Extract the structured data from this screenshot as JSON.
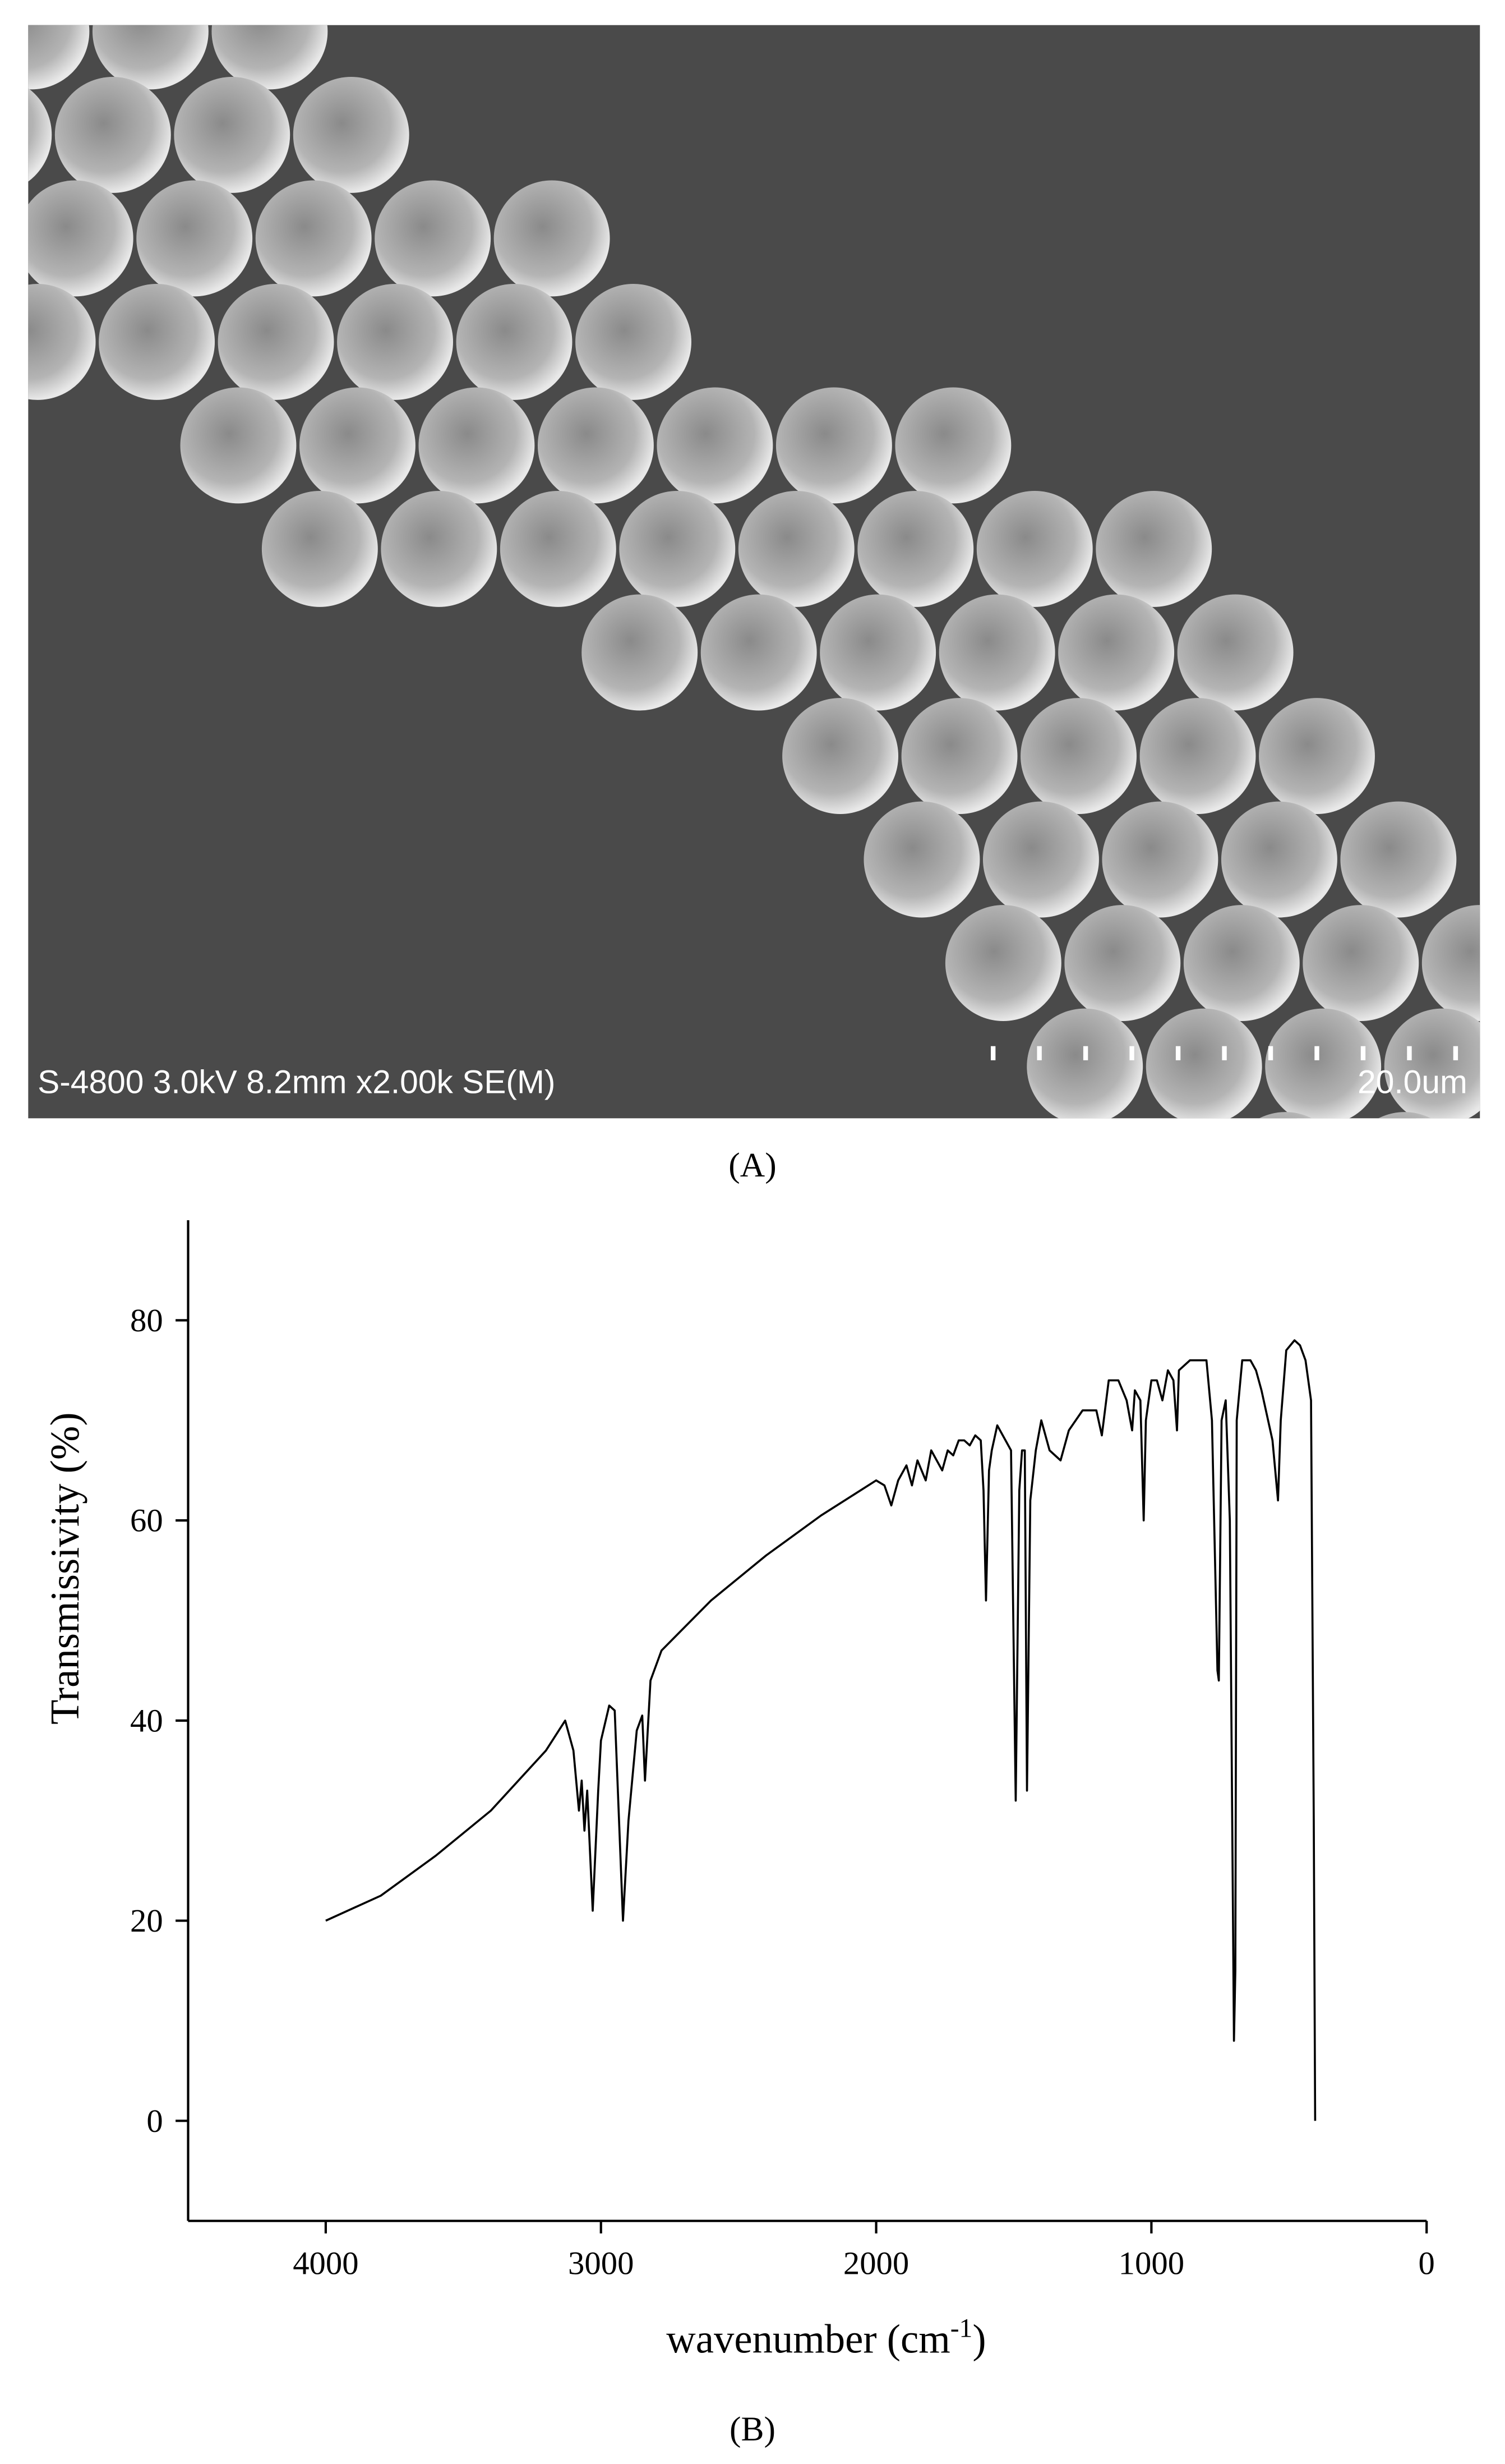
{
  "panel_a": {
    "sem_info": "S-4800 3.0kV 8.2mm x2.00k SE(M)",
    "scale_label": "20.0um",
    "caption": "(A)"
  },
  "chart_data": {
    "type": "line",
    "y_label": "Transmissivity (%)",
    "x_label": [
      "wavenumber (cm",
      "-1",
      ")"
    ],
    "caption": "(B)",
    "color": "#000000",
    "xlim": [
      4500,
      0
    ],
    "xticks": [
      4000,
      3000,
      2000,
      1000,
      0
    ],
    "ylim": [
      -10,
      90
    ],
    "yticks": [
      0,
      20,
      40,
      60,
      80
    ],
    "x": [
      4000,
      3800,
      3600,
      3400,
      3200,
      3130,
      3100,
      3080,
      3070,
      3060,
      3050,
      3030,
      3010,
      3000,
      2970,
      2950,
      2920,
      2900,
      2870,
      2850,
      2840,
      2820,
      2780,
      2600,
      2400,
      2200,
      2000,
      1970,
      1945,
      1920,
      1890,
      1870,
      1850,
      1820,
      1800,
      1760,
      1740,
      1720,
      1700,
      1680,
      1660,
      1640,
      1620,
      1610,
      1601,
      1590,
      1580,
      1560,
      1540,
      1510,
      1493,
      1480,
      1470,
      1460,
      1452,
      1440,
      1420,
      1400,
      1370,
      1330,
      1300,
      1250,
      1200,
      1180,
      1155,
      1120,
      1090,
      1070,
      1060,
      1040,
      1028,
      1020,
      1000,
      980,
      960,
      940,
      920,
      907,
      900,
      860,
      840,
      800,
      780,
      760,
      755,
      745,
      730,
      715,
      700,
      695,
      690,
      670,
      640,
      620,
      600,
      560,
      540,
      530,
      510,
      480,
      460,
      440,
      420,
      410,
      405
    ],
    "values": [
      20,
      22.5,
      26.5,
      31,
      37,
      40,
      37,
      31,
      34,
      29,
      33,
      21,
      33,
      38,
      41.5,
      41,
      20,
      30,
      39,
      40.5,
      34,
      44,
      47,
      52,
      56.5,
      60.5,
      64,
      63.5,
      61.5,
      64,
      65.5,
      63.5,
      66,
      64,
      67,
      65,
      67,
      66.5,
      68,
      68,
      67.5,
      68.5,
      68,
      63,
      52,
      65,
      67,
      69.5,
      68.5,
      67,
      32,
      63,
      67,
      67,
      33,
      62,
      67,
      70,
      67,
      66,
      69,
      71,
      71,
      68.5,
      74,
      74,
      72,
      69,
      73,
      72,
      60,
      70,
      74,
      74,
      72,
      75,
      74,
      69,
      75,
      76,
      76,
      76,
      70,
      45,
      44,
      70,
      72,
      60,
      8,
      15,
      70,
      76,
      76,
      75,
      73,
      68,
      62,
      70,
      77,
      78,
      77.5,
      76,
      72,
      30,
      0
    ]
  }
}
